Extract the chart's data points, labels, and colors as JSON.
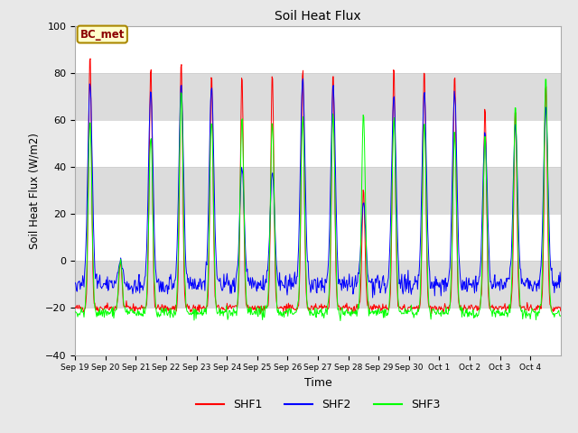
{
  "title": "Soil Heat Flux",
  "xlabel": "Time",
  "ylabel": "Soil Heat Flux (W/m2)",
  "ylim": [
    -40,
    100
  ],
  "yticks": [
    -40,
    -20,
    0,
    20,
    40,
    60,
    80,
    100
  ],
  "series": [
    "SHF1",
    "SHF2",
    "SHF3"
  ],
  "colors": [
    "red",
    "blue",
    "lime"
  ],
  "annotation_text": "BC_met",
  "annotation_bg": "#ffffcc",
  "annotation_border": "#aa8800",
  "figsize": [
    6.4,
    4.8
  ],
  "dpi": 100,
  "background_color": "#e8e8e8",
  "plot_bg": "#ffffff",
  "band_color": "#dcdcdc",
  "x_tick_labels": [
    "Sep 19",
    "Sep 20",
    "Sep 21",
    "Sep 22",
    "Sep 23",
    "Sep 24",
    "Sep 25",
    "Sep 26",
    "Sep 27",
    "Sep 28",
    "Sep 29",
    "Sep 30",
    "Oct 1",
    "Oct 2",
    "Oct 3",
    "Oct 4"
  ],
  "n_days": 16,
  "n_per_day": 48
}
